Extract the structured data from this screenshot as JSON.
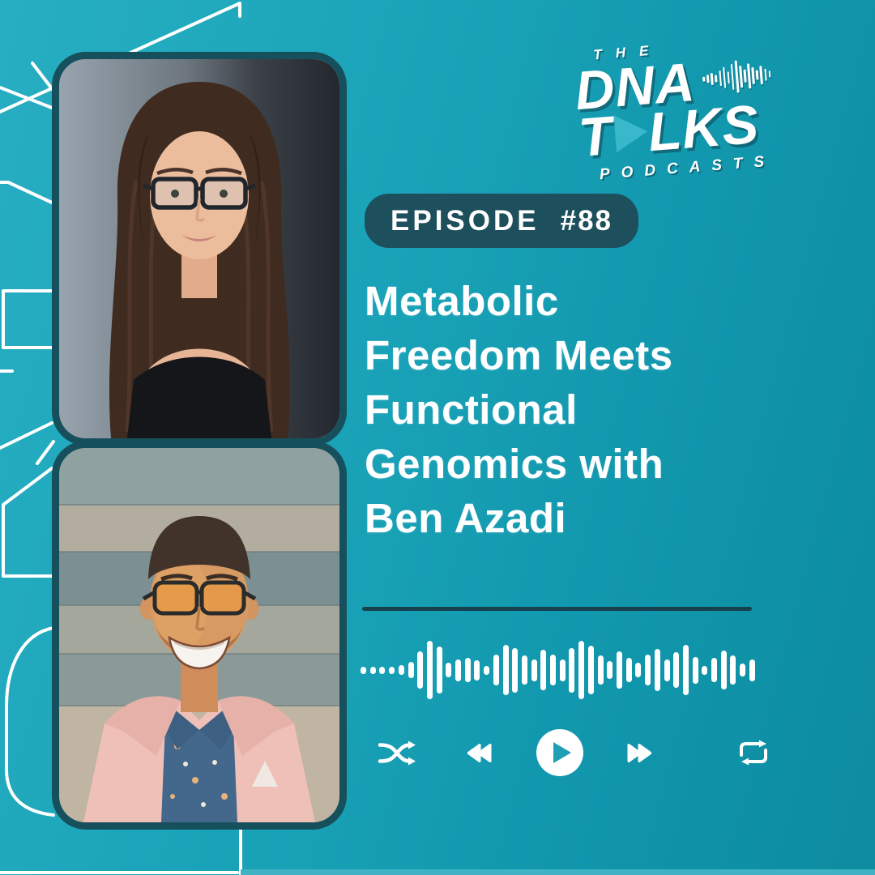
{
  "brand": {
    "the": "THE",
    "dna": "DNA",
    "talks_t": "T",
    "talks_rest": "LKS",
    "podcasts": "PODCASTS",
    "logo_wave_heights": [
      6,
      10,
      15,
      9,
      19,
      26,
      15,
      32,
      40,
      27,
      16,
      31,
      21,
      12,
      23,
      15,
      8
    ]
  },
  "episode_badge": {
    "label": "EPISODE",
    "number": "#88"
  },
  "title": {
    "lines": [
      "Metabolic",
      "Freedom Meets",
      "Functional",
      "Genomics with",
      "Ben Azadi"
    ]
  },
  "waveform": {
    "bar_heights": [
      9,
      9,
      9,
      9,
      12,
      20,
      46,
      72,
      58,
      18,
      27,
      30,
      25,
      11,
      38,
      62,
      55,
      36,
      27,
      50,
      38,
      27,
      55,
      72,
      60,
      36,
      22,
      46,
      30,
      18,
      38,
      52,
      27,
      44,
      62,
      33,
      11,
      30,
      48,
      36,
      16,
      27
    ]
  },
  "player": {
    "icons": [
      "shuffle-icon",
      "rewind-icon",
      "play-icon",
      "fast-forward-icon",
      "repeat-icon"
    ]
  },
  "colors": {
    "background_light": "#27aec2",
    "background_dark": "#0d8ba1",
    "accent_dark": "#1d4f5d",
    "frame_border": "#17505d",
    "divider": "#16414f",
    "play_triangle": "#1f9fb4",
    "play_triangle_light": "#3ab8cb",
    "white": "#ffffff"
  }
}
